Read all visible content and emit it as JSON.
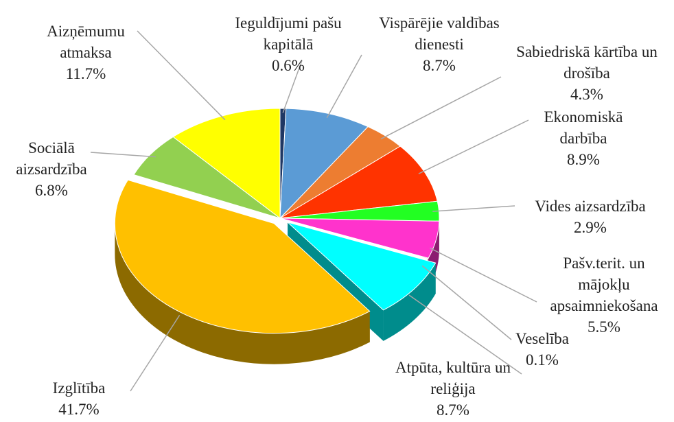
{
  "chart_data": {
    "type": "pie",
    "categories": [
      "Ieguldījumi pašu kapitālā",
      "Vispārējie valdības dienesti",
      "Sabiedriskā kārtība un drošība",
      "Ekonomiskā darbība",
      "Vides aizsardzība",
      "Pašv.terit. un mājokļu apsaimniekošana",
      "Veselība",
      "Atpūta, kultūra un reliģija",
      "Izglītība",
      "Sociālā aizsardzība",
      "Aizņēmumu atmaksa"
    ],
    "values": [
      0.6,
      8.7,
      4.3,
      8.9,
      2.9,
      5.5,
      0.1,
      8.7,
      41.7,
      6.8,
      11.7
    ],
    "value_labels": [
      "0.6%",
      "8.7%",
      "4.3%",
      "8.9%",
      "2.9%",
      "5.5%",
      "0.1%",
      "8.7%",
      "41.7%",
      "6.8%",
      "11.7%"
    ],
    "colors": [
      "#1f3864",
      "#5b9bd5",
      "#ed7d31",
      "#ff3300",
      "#22ff22",
      "#ff33cc",
      "#800000",
      "#00ffff",
      "#ffc000",
      "#92d050",
      "#ffff00"
    ]
  }
}
